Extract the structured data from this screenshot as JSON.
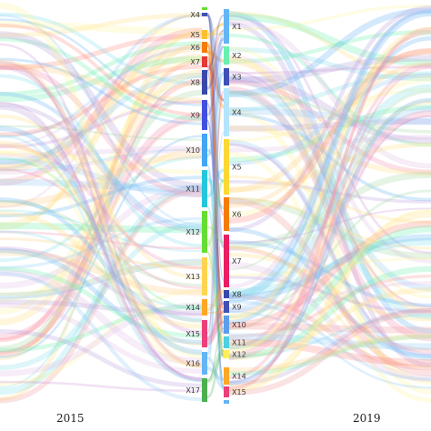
{
  "diagram": {
    "type": "alluvial",
    "left_axis": {
      "year": "2015",
      "nodes": [
        {
          "label": "X4",
          "color": "#3f51b5"
        },
        {
          "label": "X5",
          "color": "#fbc02d"
        },
        {
          "label": "X6",
          "color": "#f57c00"
        },
        {
          "label": "X7",
          "color": "#e53935"
        },
        {
          "label": "X8",
          "color": "#3949ab"
        },
        {
          "label": "X9",
          "color": "#3f51e0"
        },
        {
          "label": "X10",
          "color": "#42a5f5"
        },
        {
          "label": "X11",
          "color": "#26c6da"
        },
        {
          "label": "X12",
          "color": "#66dd33"
        },
        {
          "label": "X13",
          "color": "#ffd54f"
        },
        {
          "label": "X14",
          "color": "#ffa726"
        },
        {
          "label": "X15",
          "color": "#ec407a"
        },
        {
          "label": "X16",
          "color": "#64b5f6"
        },
        {
          "label": "X17",
          "color": "#4caf50"
        }
      ]
    },
    "right_axis": {
      "year": "2019",
      "nodes": [
        {
          "label": "X1",
          "color": "#64b5f6"
        },
        {
          "label": "X2",
          "color": "#69f0ae"
        },
        {
          "label": "X3",
          "color": "#3f51b5"
        },
        {
          "label": "X4",
          "color": "#b3e5fc"
        },
        {
          "label": "X5",
          "color": "#fdd835"
        },
        {
          "label": "X6",
          "color": "#f57c00"
        },
        {
          "label": "X7",
          "color": "#e91e63"
        },
        {
          "label": "X8",
          "color": "#3949ab"
        },
        {
          "label": "X9",
          "color": "#3f51b5"
        },
        {
          "label": "X10",
          "color": "#5c9ded"
        },
        {
          "label": "X11",
          "color": "#4dd0e1"
        },
        {
          "label": "X12",
          "color": "#ffee58"
        },
        {
          "label": "X14",
          "color": "#ffa726"
        },
        {
          "label": "X15",
          "color": "#ec407a"
        }
      ]
    }
  }
}
